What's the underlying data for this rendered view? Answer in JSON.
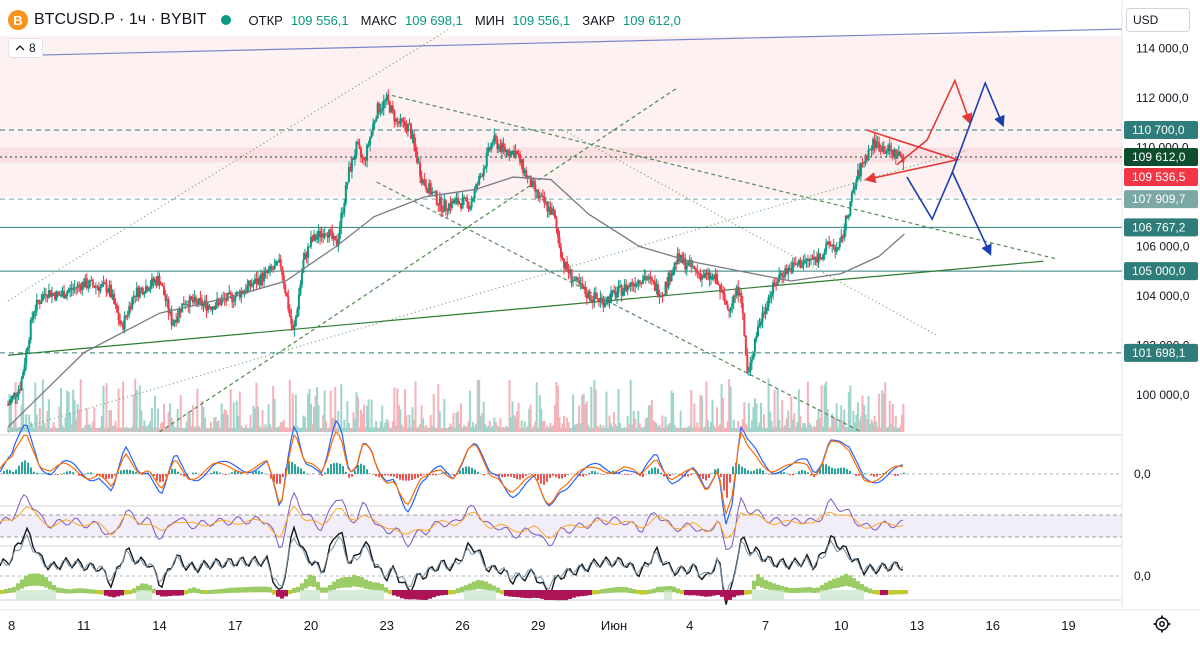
{
  "symbol": {
    "logo_letter": "B",
    "title": "BTCUSD.P · 1ч · BYBIT",
    "status_color": "#089981",
    "ohlc": {
      "open_label": "ОТКР",
      "open": "109 556,1",
      "high_label": "МАКС",
      "high": "109 698,1",
      "low_label": "МИН",
      "low": "109 556,1",
      "close_label": "ЗАКР",
      "close": "109 612,0"
    }
  },
  "indicators_toggle": {
    "icon": "chevron-up-icon",
    "count": "8"
  },
  "currency": "USD",
  "settings_icon": "gear-icon",
  "time_axis": [
    {
      "label": "8",
      "x": 0
    },
    {
      "label": "11",
      "x": 3
    },
    {
      "label": "14",
      "x": 6
    },
    {
      "label": "17",
      "x": 9
    },
    {
      "label": "20",
      "x": 12
    },
    {
      "label": "23",
      "x": 15
    },
    {
      "label": "26",
      "x": 18
    },
    {
      "label": "29",
      "x": 21
    },
    {
      "label": "Июн",
      "x": 24
    },
    {
      "label": "4",
      "x": 27
    },
    {
      "label": "7",
      "x": 30
    },
    {
      "label": "10",
      "x": 33
    },
    {
      "label": "13",
      "x": 36
    },
    {
      "label": "16",
      "x": 39
    },
    {
      "label": "19",
      "x": 42
    }
  ],
  "price_axis": [
    "112 000,0",
    "110 000,0",
    "108 000,0",
    "106 000,0",
    "104 000,0",
    "102 000,0",
    "100 000,0"
  ],
  "price_axis_values": [
    112000,
    110000,
    108000,
    106000,
    104000,
    102000,
    100000
  ],
  "price_axis_top_clipped": "114 000,0",
  "price_badges": [
    {
      "label": "110 700,0",
      "value": 110700,
      "color": "#2e7d7a"
    },
    {
      "label": "109 612,0",
      "value": 109612,
      "color": "#0e4d2e"
    },
    {
      "label": "109 536,5",
      "value": 109536.5,
      "color": "#f23645"
    },
    {
      "label": "107 909,7",
      "value": 107909.7,
      "color": "#7ba7a4"
    },
    {
      "label": "106 767,2",
      "value": 106767.2,
      "color": "#2e7d7a"
    },
    {
      "label": "105 000,0",
      "value": 105000,
      "color": "#2e7d7a"
    },
    {
      "label": "101 698,1",
      "value": 101698.1,
      "color": "#2e7d7a"
    }
  ],
  "horizontal_levels": [
    {
      "value": 110700,
      "style": "dashed",
      "color": "#2e7d7a"
    },
    {
      "value": 107909.7,
      "style": "dashed",
      "color": "#7ba7a4"
    },
    {
      "value": 106767.2,
      "style": "solid",
      "color": "#2e7d7a"
    },
    {
      "value": 105000,
      "style": "solid",
      "color": "#2e7d7a"
    },
    {
      "value": 101698.1,
      "style": "dashed",
      "color": "#2e7d7a"
    }
  ],
  "pane_zero_labels": [
    "0,0",
    "0,0"
  ],
  "chart_data": {
    "type": "candlestick",
    "y_range": [
      98500,
      114500
    ],
    "x_range": [
      0,
      45
    ],
    "close_path": [
      [
        0,
        99600
      ],
      [
        0.5,
        100400
      ],
      [
        1,
        103400
      ],
      [
        1.5,
        104200
      ],
      [
        2,
        104000
      ],
      [
        3,
        104500
      ],
      [
        4,
        104300
      ],
      [
        4.5,
        102700
      ],
      [
        5,
        104100
      ],
      [
        6,
        104700
      ],
      [
        6.5,
        102900
      ],
      [
        7,
        103800
      ],
      [
        8,
        103600
      ],
      [
        8.5,
        103800
      ],
      [
        9,
        104000
      ],
      [
        10,
        104700
      ],
      [
        10.8,
        105300
      ],
      [
        11.3,
        102400
      ],
      [
        11.7,
        105400
      ],
      [
        12,
        106200
      ],
      [
        12.6,
        106700
      ],
      [
        13,
        106000
      ],
      [
        13.5,
        109000
      ],
      [
        13.8,
        110000
      ],
      [
        14.1,
        109400
      ],
      [
        14.6,
        111500
      ],
      [
        15,
        111900
      ],
      [
        15.4,
        111000
      ],
      [
        15.9,
        110800
      ],
      [
        16.4,
        108700
      ],
      [
        17.2,
        107600
      ],
      [
        17.8,
        107800
      ],
      [
        18.3,
        107700
      ],
      [
        18.7,
        108800
      ],
      [
        19.2,
        110300
      ],
      [
        19.6,
        109900
      ],
      [
        20.1,
        109800
      ],
      [
        20.6,
        108700
      ],
      [
        21,
        108000
      ],
      [
        21.6,
        107300
      ],
      [
        22,
        105300
      ],
      [
        22.5,
        104500
      ],
      [
        23,
        104000
      ],
      [
        23.6,
        103800
      ],
      [
        24.4,
        104300
      ],
      [
        25.2,
        104800
      ],
      [
        25.9,
        104100
      ],
      [
        26.5,
        105500
      ],
      [
        27,
        105200
      ],
      [
        27.5,
        104800
      ],
      [
        28,
        104700
      ],
      [
        28.5,
        103500
      ],
      [
        29,
        104400
      ],
      [
        29.3,
        100600
      ],
      [
        29.6,
        102400
      ],
      [
        30.1,
        103900
      ],
      [
        30.6,
        104900
      ],
      [
        31.3,
        105300
      ],
      [
        32,
        105500
      ],
      [
        32.6,
        106100
      ],
      [
        32.9,
        105800
      ],
      [
        33.3,
        107500
      ],
      [
        33.6,
        108700
      ],
      [
        33.9,
        109500
      ],
      [
        34.3,
        110200
      ],
      [
        34.8,
        109900
      ],
      [
        35.2,
        109700
      ],
      [
        35.5,
        109612
      ]
    ],
    "ma_path": [
      [
        0,
        98700
      ],
      [
        1,
        99700
      ],
      [
        3,
        101700
      ],
      [
        6,
        103300
      ],
      [
        9,
        104000
      ],
      [
        11,
        104600
      ],
      [
        13,
        106000
      ],
      [
        14.5,
        107200
      ],
      [
        16.5,
        108000
      ],
      [
        18.5,
        108300
      ],
      [
        20,
        108800
      ],
      [
        21.5,
        108700
      ],
      [
        23,
        107300
      ],
      [
        25,
        106000
      ],
      [
        27,
        105400
      ],
      [
        29,
        105000
      ],
      [
        31,
        104600
      ],
      [
        33,
        104900
      ],
      [
        34.5,
        105600
      ],
      [
        35.5,
        106500
      ]
    ],
    "trend_lines": [
      {
        "from": [
          0,
          103800
        ],
        "to": [
          17.5,
          114800
        ],
        "color": "#6a9f6a",
        "dash": "1 3"
      },
      {
        "from": [
          0,
          101600
        ],
        "to": [
          41,
          105400
        ],
        "color": "#2e7d32",
        "dash": ""
      },
      {
        "from": [
          6,
          98500
        ],
        "to": [
          26.5,
          112400
        ],
        "color": "#4a8a4a",
        "dash": "4 3"
      },
      {
        "from": [
          0,
          98500
        ],
        "to": [
          38,
          109900
        ],
        "color": "#6a9f6a",
        "dash": "1 3"
      },
      {
        "from": [
          15.2,
          112100
        ],
        "to": [
          41.5,
          105500
        ],
        "color": "#5a8a5a",
        "dash": "4 3"
      },
      {
        "from": [
          14.6,
          108600
        ],
        "to": [
          33.8,
          98500
        ],
        "color": "#5a8a5a",
        "dash": "4 3"
      },
      {
        "from": [
          22,
          110700
        ],
        "to": [
          36.8,
          102400
        ],
        "color": "#6a9f6a",
        "dash": "1 3"
      },
      {
        "from": [
          0,
          113700
        ],
        "to": [
          45,
          114800
        ],
        "color": "#7986cb",
        "dash": ""
      }
    ],
    "triangle_pattern": {
      "color": "#e53935",
      "points": [
        [
          34,
          110700
        ],
        [
          37.6,
          109500
        ],
        [
          34,
          108700
        ]
      ]
    },
    "projection_red": [
      [
        35.2,
        109300
      ],
      [
        36.4,
        110300
      ],
      [
        37.5,
        112700
      ],
      [
        38.1,
        111000
      ]
    ],
    "projection_blue": [
      [
        35.6,
        108800
      ],
      [
        36.6,
        107100
      ],
      [
        37.4,
        109000
      ],
      [
        38.7,
        112600
      ],
      [
        39.4,
        110900
      ]
    ],
    "projection_blue_down": [
      [
        37.4,
        109000
      ],
      [
        38.9,
        105700
      ]
    ],
    "highlight_zone": [
      108000,
      114500
    ]
  }
}
